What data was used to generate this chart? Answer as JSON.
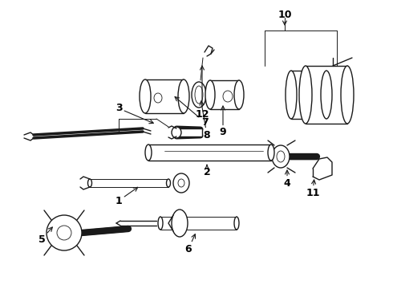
{
  "bg_color": "#ffffff",
  "line_color": "#1a1a1a",
  "label_color": "#000000",
  "fig_width": 4.9,
  "fig_height": 3.6,
  "dpi": 100,
  "xlim": [
    0,
    490
  ],
  "ylim": [
    0,
    360
  ]
}
